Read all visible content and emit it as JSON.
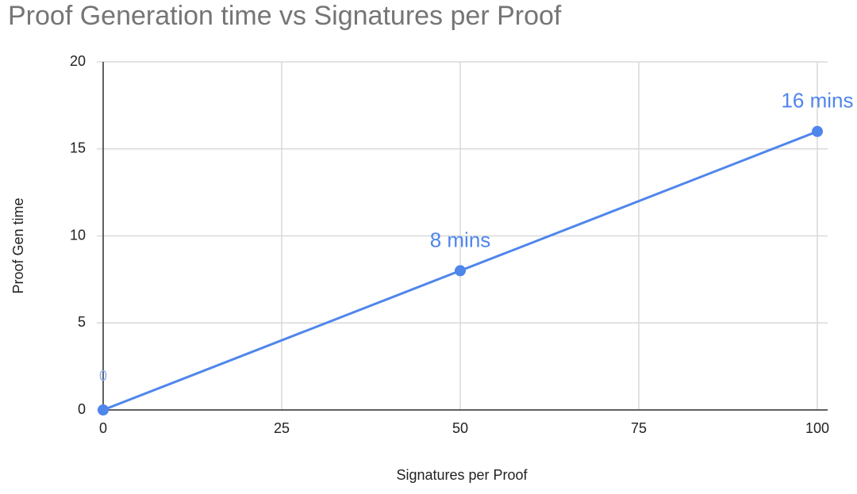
{
  "chart_data": {
    "type": "line",
    "title": "Proof Generation time vs Signatures per Proof",
    "x_label": "Signatures per Proof",
    "y_label": "Proof Gen time",
    "x": [
      0,
      50,
      100
    ],
    "series": [
      {
        "name": "Proof Gen time",
        "color": "#4f86ec",
        "values": [
          0,
          8,
          16
        ],
        "value_labels": [
          "0",
          "8 mins",
          "16 mins"
        ]
      }
    ],
    "xlim": [
      0,
      100
    ],
    "xticks": [
      0,
      25,
      50,
      75,
      100
    ],
    "ylim": [
      0,
      20
    ],
    "yticks": [
      0,
      5,
      10,
      15,
      20
    ],
    "grid": true
  }
}
